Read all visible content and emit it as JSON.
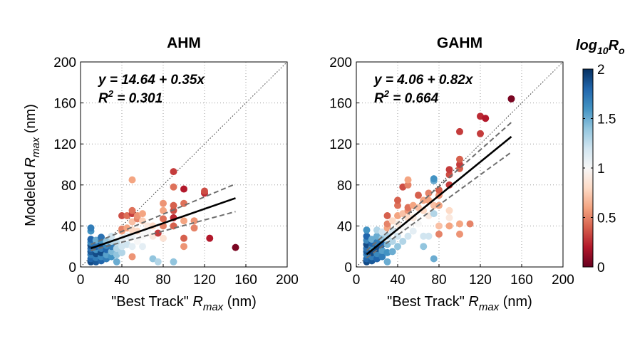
{
  "chart_data": [
    {
      "type": "scatter",
      "title": "AHM",
      "xlabel_prefix": "\"Best Track\" ",
      "xlabel_var": "R",
      "xlabel_sub": "max",
      "xlabel_suffix": "  (nm)",
      "ylabel_prefix": "Modeled ",
      "ylabel_var": "R",
      "ylabel_sub": "max",
      "ylabel_suffix": "  (nm)",
      "xlim": [
        0,
        200
      ],
      "ylim": [
        0,
        200
      ],
      "xticks": [
        0,
        40,
        80,
        120,
        160,
        200
      ],
      "yticks": [
        0,
        40,
        80,
        120,
        160,
        200
      ],
      "grid": true,
      "equation": "y = 14.64 + 0.35x",
      "r2_label": "R",
      "r2_sup": "2",
      "r2_value": " = 0.301",
      "fit": {
        "intercept": 14.64,
        "slope": 0.35,
        "x_range": [
          10,
          150
        ]
      },
      "ci_upper": [
        [
          10,
          22
        ],
        [
          150,
          81
        ]
      ],
      "ci_lower": [
        [
          10,
          16
        ],
        [
          150,
          54
        ]
      ],
      "identity_line": [
        [
          0,
          0
        ],
        [
          200,
          200
        ]
      ],
      "points": [
        [
          10,
          5,
          1.9
        ],
        [
          10,
          8,
          1.8
        ],
        [
          10,
          12,
          1.7
        ],
        [
          10,
          15,
          1.85
        ],
        [
          10,
          18,
          1.75
        ],
        [
          10,
          21,
          1.9
        ],
        [
          10,
          24,
          1.65
        ],
        [
          10,
          27,
          1.8
        ],
        [
          10,
          35,
          1.6
        ],
        [
          10,
          38,
          1.7
        ],
        [
          15,
          5,
          1.85
        ],
        [
          15,
          9,
          1.7
        ],
        [
          15,
          13,
          1.9
        ],
        [
          15,
          17,
          1.6
        ],
        [
          15,
          20,
          1.8
        ],
        [
          15,
          23,
          1.75
        ],
        [
          15,
          26,
          1.5
        ],
        [
          20,
          6,
          1.8
        ],
        [
          20,
          10,
          1.65
        ],
        [
          20,
          14,
          1.9
        ],
        [
          20,
          18,
          1.7
        ],
        [
          20,
          22,
          1.85
        ],
        [
          20,
          26,
          1.6
        ],
        [
          20,
          29,
          1.75
        ],
        [
          25,
          8,
          1.7
        ],
        [
          25,
          12,
          1.55
        ],
        [
          25,
          17,
          1.8
        ],
        [
          25,
          21,
          1.65
        ],
        [
          25,
          25,
          1.4
        ],
        [
          30,
          10,
          1.6
        ],
        [
          30,
          15,
          1.45
        ],
        [
          30,
          20,
          1.7
        ],
        [
          30,
          25,
          1.3
        ],
        [
          30,
          30,
          1.2
        ],
        [
          35,
          5,
          1.5
        ],
        [
          35,
          12,
          1.4
        ],
        [
          35,
          18,
          1.3
        ],
        [
          35,
          24,
          1.25
        ],
        [
          40,
          14,
          1.3
        ],
        [
          40,
          20,
          1.2
        ],
        [
          40,
          28,
          1.1
        ],
        [
          40,
          35,
          0.6
        ],
        [
          40,
          37,
          0.5
        ],
        [
          40,
          50,
          0.35
        ],
        [
          45,
          22,
          1.2
        ],
        [
          45,
          30,
          1.1
        ],
        [
          45,
          38,
          0.6
        ],
        [
          45,
          50,
          0.45
        ],
        [
          50,
          10,
          0.55
        ],
        [
          50,
          20,
          1.1
        ],
        [
          50,
          30,
          1.05
        ],
        [
          50,
          36,
          0.8
        ],
        [
          50,
          44,
          0.7
        ],
        [
          50,
          52,
          0.3
        ],
        [
          50,
          55,
          0.45
        ],
        [
          50,
          85,
          0.6
        ],
        [
          55,
          25,
          1.0
        ],
        [
          55,
          35,
          0.8
        ],
        [
          55,
          47,
          0.5
        ],
        [
          55,
          50,
          0.55
        ],
        [
          60,
          20,
          1.1
        ],
        [
          60,
          30,
          1.0
        ],
        [
          60,
          45,
          0.75
        ],
        [
          60,
          52,
          0.6
        ],
        [
          65,
          35,
          1.0
        ],
        [
          65,
          40,
          0.9
        ],
        [
          70,
          8,
          1.4
        ],
        [
          70,
          30,
          0.9
        ],
        [
          70,
          40,
          0.8
        ],
        [
          75,
          5,
          1.3
        ],
        [
          75,
          33,
          0.3
        ],
        [
          80,
          28,
          0.85
        ],
        [
          80,
          40,
          0.5
        ],
        [
          80,
          47,
          0.45
        ],
        [
          80,
          55,
          0.6
        ],
        [
          80,
          62,
          0.55
        ],
        [
          90,
          5,
          1.4
        ],
        [
          90,
          40,
          0.4
        ],
        [
          90,
          48,
          0.25
        ],
        [
          90,
          55,
          0.35
        ],
        [
          90,
          60,
          0.4
        ],
        [
          90,
          78,
          0.45
        ],
        [
          90,
          93,
          0.3
        ],
        [
          100,
          20,
          0.55
        ],
        [
          100,
          28,
          0.4
        ],
        [
          100,
          45,
          0.6
        ],
        [
          100,
          62,
          0.45
        ],
        [
          100,
          76,
          0.2
        ],
        [
          110,
          38,
          0.5
        ],
        [
          110,
          45,
          0.55
        ],
        [
          120,
          72,
          0.25
        ],
        [
          120,
          74,
          0.35
        ],
        [
          125,
          28,
          0.2
        ],
        [
          150,
          19,
          0.05
        ]
      ]
    },
    {
      "type": "scatter",
      "title": "GAHM",
      "xlabel_prefix": "\"Best Track\" ",
      "xlabel_var": "R",
      "xlabel_sub": "max",
      "xlabel_suffix": "  (nm)",
      "xlim": [
        0,
        200
      ],
      "ylim": [
        0,
        200
      ],
      "xticks": [
        0,
        40,
        80,
        120,
        160,
        200
      ],
      "yticks": [
        0,
        40,
        80,
        120,
        160,
        200
      ],
      "grid": true,
      "equation": "y = 4.06 + 0.82x",
      "r2_label": "R",
      "r2_sup": "2",
      "r2_value": " = 0.664",
      "fit": {
        "intercept": 4.06,
        "slope": 0.82,
        "x_range": [
          10,
          150
        ]
      },
      "ci_upper": [
        [
          10,
          16
        ],
        [
          150,
          141
        ]
      ],
      "ci_lower": [
        [
          10,
          9
        ],
        [
          150,
          112
        ]
      ],
      "identity_line": [
        [
          0,
          0
        ],
        [
          200,
          200
        ]
      ],
      "points": [
        [
          10,
          5,
          1.9
        ],
        [
          10,
          8,
          1.8
        ],
        [
          10,
          12,
          1.7
        ],
        [
          10,
          15,
          1.85
        ],
        [
          10,
          18,
          1.75
        ],
        [
          10,
          22,
          1.9
        ],
        [
          10,
          26,
          1.65
        ],
        [
          10,
          30,
          1.8
        ],
        [
          10,
          36,
          1.6
        ],
        [
          15,
          6,
          1.85
        ],
        [
          15,
          10,
          1.7
        ],
        [
          15,
          14,
          1.9
        ],
        [
          15,
          19,
          1.6
        ],
        [
          15,
          23,
          1.8
        ],
        [
          15,
          27,
          1.5
        ],
        [
          20,
          8,
          1.8
        ],
        [
          20,
          13,
          1.65
        ],
        [
          20,
          18,
          1.9
        ],
        [
          20,
          24,
          1.7
        ],
        [
          20,
          30,
          1.5
        ],
        [
          20,
          36,
          1.3
        ],
        [
          25,
          10,
          1.7
        ],
        [
          25,
          16,
          1.55
        ],
        [
          25,
          22,
          1.8
        ],
        [
          25,
          28,
          1.4
        ],
        [
          25,
          34,
          1.2
        ],
        [
          30,
          5,
          1.5
        ],
        [
          30,
          14,
          1.6
        ],
        [
          30,
          22,
          1.45
        ],
        [
          30,
          30,
          1.3
        ],
        [
          30,
          38,
          0.6
        ],
        [
          30,
          42,
          0.5
        ],
        [
          30,
          50,
          0.4
        ],
        [
          35,
          15,
          1.5
        ],
        [
          35,
          25,
          1.3
        ],
        [
          35,
          35,
          1.2
        ],
        [
          35,
          45,
          0.8
        ],
        [
          40,
          20,
          1.4
        ],
        [
          40,
          30,
          1.2
        ],
        [
          40,
          42,
          0.9
        ],
        [
          40,
          50,
          0.6
        ],
        [
          40,
          60,
          0.45
        ],
        [
          40,
          65,
          0.4
        ],
        [
          45,
          25,
          1.3
        ],
        [
          45,
          38,
          1.0
        ],
        [
          45,
          52,
          0.7
        ],
        [
          45,
          78,
          0.35
        ],
        [
          50,
          30,
          1.2
        ],
        [
          50,
          40,
          1.0
        ],
        [
          50,
          48,
          0.8
        ],
        [
          50,
          55,
          0.55
        ],
        [
          50,
          58,
          0.45
        ],
        [
          50,
          80,
          0.5
        ],
        [
          50,
          85,
          0.6
        ],
        [
          55,
          35,
          1.1
        ],
        [
          55,
          48,
          0.9
        ],
        [
          55,
          60,
          0.6
        ],
        [
          60,
          42,
          1.0
        ],
        [
          60,
          58,
          0.7
        ],
        [
          60,
          70,
          0.4
        ],
        [
          65,
          20,
          1.4
        ],
        [
          65,
          30,
          1.2
        ],
        [
          65,
          55,
          0.8
        ],
        [
          65,
          65,
          0.6
        ],
        [
          70,
          30,
          1.2
        ],
        [
          70,
          50,
          0.9
        ],
        [
          70,
          65,
          0.6
        ],
        [
          70,
          72,
          0.5
        ],
        [
          75,
          8,
          1.5
        ],
        [
          75,
          52,
          1.3
        ],
        [
          75,
          60,
          0.7
        ],
        [
          75,
          84,
          1.5
        ],
        [
          75,
          86,
          1.6
        ],
        [
          80,
          32,
          0.5
        ],
        [
          80,
          40,
          0.7
        ],
        [
          80,
          60,
          0.6
        ],
        [
          80,
          70,
          0.55
        ],
        [
          80,
          75,
          0.4
        ],
        [
          90,
          40,
          0.6
        ],
        [
          90,
          48,
          0.9
        ],
        [
          90,
          55,
          0.8
        ],
        [
          90,
          80,
          0.3
        ],
        [
          90,
          90,
          0.35
        ],
        [
          90,
          95,
          0.3
        ],
        [
          100,
          32,
          0.55
        ],
        [
          100,
          42,
          0.6
        ],
        [
          100,
          96,
          0.4
        ],
        [
          100,
          100,
          0.3
        ],
        [
          100,
          105,
          0.4
        ],
        [
          100,
          132,
          0.3
        ],
        [
          110,
          42,
          0.5
        ],
        [
          120,
          130,
          0.3
        ],
        [
          120,
          147,
          0.25
        ],
        [
          125,
          145,
          0.2
        ],
        [
          150,
          164,
          0.05
        ]
      ]
    }
  ],
  "colorbar": {
    "title_prefix": "log",
    "title_sub": "10",
    "title_suffix": "R",
    "title_sub2": "o",
    "range": [
      0,
      2
    ],
    "ticks": [
      "0",
      "0.5",
      "1",
      "1.5",
      "2"
    ],
    "tick_values": [
      0,
      0.5,
      1,
      1.5,
      2
    ],
    "colormap": [
      "#67001f",
      "#b2182b",
      "#d6604d",
      "#f4a582",
      "#fddbc7",
      "#f7f7f7",
      "#d1e5f0",
      "#92c5de",
      "#4393c3",
      "#2166ac",
      "#053061"
    ]
  },
  "colors": {
    "fit_line": "#000000",
    "ci_line": "#6e6e6e",
    "identity_line": "#333333",
    "grid": "#9a9a9a"
  }
}
